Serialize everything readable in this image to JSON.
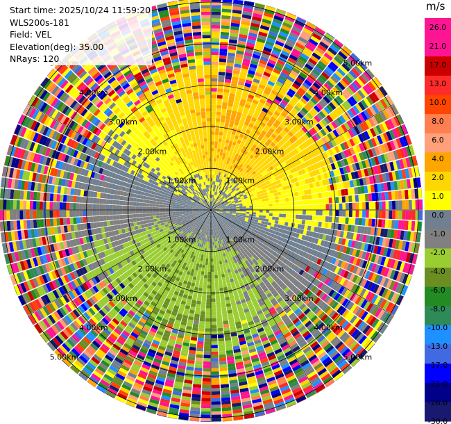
{
  "header": {
    "start_time": "Start time: 2025/10/24 11:59:20",
    "instrument": "WLS200s-181",
    "field": "Field: VEL",
    "elevation": "Elevation(deg): 35.00",
    "nrays": "NRays: 120"
  },
  "colorbar": {
    "title": "m/s",
    "ticks": [
      "26.0",
      "21.0",
      "17.0",
      "13.0",
      "10.0",
      "8.0",
      "6.0",
      "4.0",
      "2.0",
      "1.0",
      "0.0",
      "-1.0",
      "-2.0",
      "-4.0",
      "-6.0",
      "-8.0",
      "-10.0",
      "-13.0",
      "-17.0",
      "-21.0",
      "-26.0",
      "-30.0"
    ],
    "colors": [
      "#ff1493",
      "#ff1493",
      "#cc0000",
      "#ff2a2a",
      "#ff4500",
      "#ff7f50",
      "#ffa07a",
      "#ffa500",
      "#ffd700",
      "#ffff00",
      "#708090",
      "#808080",
      "#9acd32",
      "#6b8e23",
      "#228b22",
      "#2e8b57",
      "#1e90ff",
      "#4169e1",
      "#0000ff",
      "#00008b",
      "#191970"
    ]
  },
  "chart_data": {
    "type": "ppi",
    "field": "VEL",
    "units": "m/s",
    "nrays": 120,
    "elevation_deg": 35.0,
    "range_rings_km": [
      1.0,
      2.0,
      3.0,
      4.0,
      5.0
    ],
    "ring_labels": [
      "1.00km",
      "2.00km",
      "3.00km",
      "4.00km",
      "5.00km"
    ],
    "max_range_km": 5.1,
    "vmin": -30.0,
    "vmax": 30.0
  }
}
